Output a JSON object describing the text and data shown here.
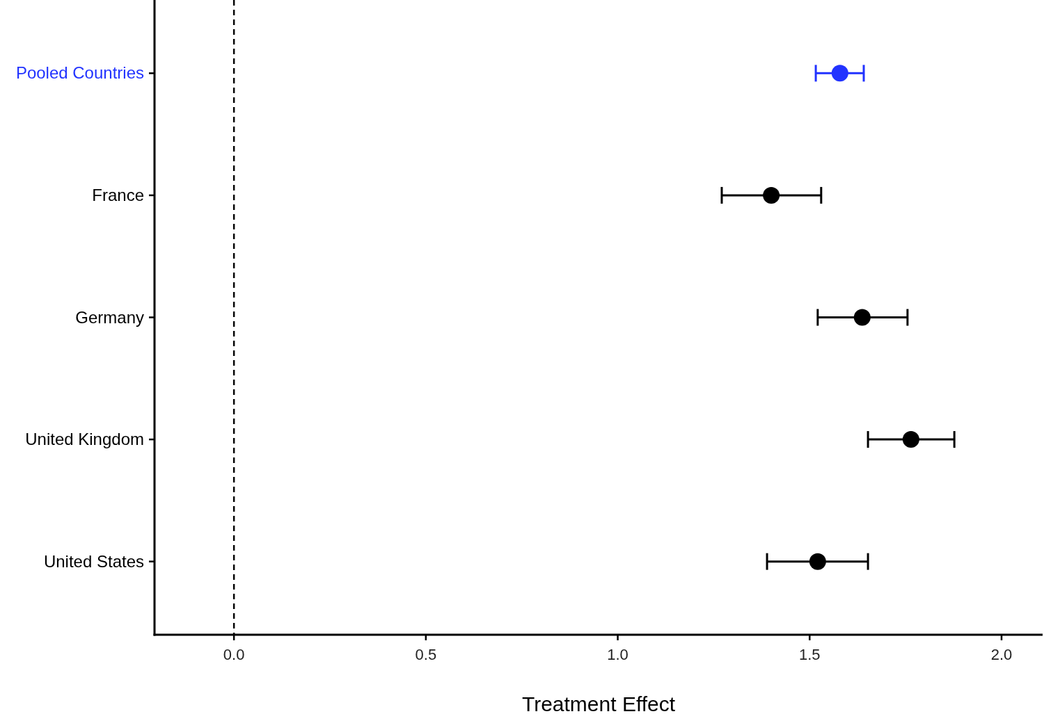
{
  "chart_data": {
    "type": "scatter",
    "orientation": "horizontal",
    "xlabel": "Treatment Effect",
    "categories": [
      "Pooled Countries",
      "France",
      "Germany",
      "United Kingdom",
      "United States"
    ],
    "values": [
      1.579,
      1.4,
      1.637,
      1.764,
      1.521
    ],
    "errors": [
      [
        1.516,
        1.641
      ],
      [
        1.271,
        1.53
      ],
      [
        1.521,
        1.755
      ],
      [
        1.652,
        1.877
      ],
      [
        1.389,
        1.652
      ]
    ],
    "colors": [
      "#2233ff",
      "#000000",
      "#000000",
      "#000000",
      "#000000"
    ],
    "xlim": [
      -0.207,
      2.107
    ],
    "xticks": [
      {
        "value": 0,
        "label": "0.0"
      },
      {
        "value": 0.5,
        "label": "0.5"
      },
      {
        "value": 1,
        "label": "1.0"
      },
      {
        "value": 1.5,
        "label": "1.5"
      },
      {
        "value": 2,
        "label": "2.0"
      }
    ],
    "ref_lines": [
      {
        "axis": "x",
        "value": 0,
        "line_style": "dashed",
        "color": "#000000"
      }
    ],
    "marker": "circle",
    "grid": false
  }
}
